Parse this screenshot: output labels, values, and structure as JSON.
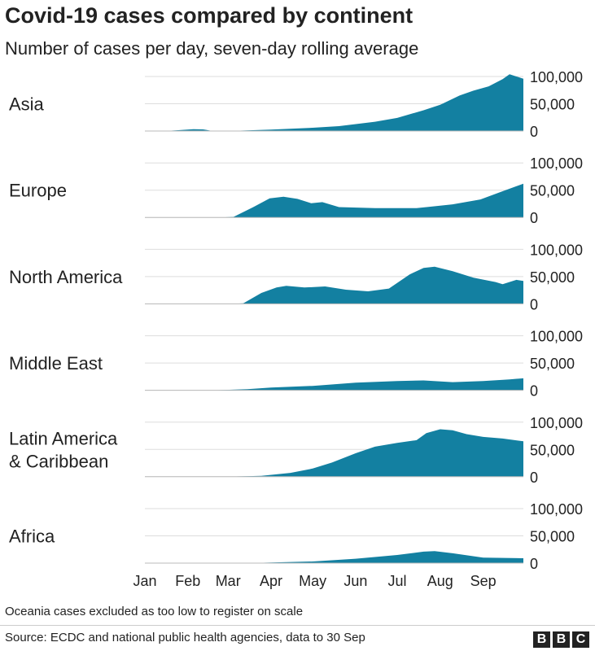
{
  "title": "Covid-19 cases compared by continent",
  "subtitle": "Number of cases per day, seven-day rolling average",
  "footnote": "Oceania cases excluded as too low to register on scale",
  "source": "Source: ECDC and national public health agencies, data to 30 Sep",
  "logo_letters": [
    "B",
    "B",
    "C"
  ],
  "colors": {
    "area": "#1380A1",
    "grid": "#dddddd",
    "text": "#222222"
  },
  "chart_data": {
    "type": "area",
    "layout": "small-multiples",
    "x_ticks": [
      "Jan",
      "Feb",
      "Mar",
      "Apr",
      "May",
      "Jun",
      "Jul",
      "Aug",
      "Sep"
    ],
    "x_domain": [
      "2020-01-01",
      "2020-09-30"
    ],
    "y_ticks": [
      "100,000",
      "50,000",
      "0"
    ],
    "y_tick_values": [
      100000,
      50000,
      0
    ],
    "ylim": [
      0,
      100000
    ],
    "grid": true,
    "panels": [
      {
        "name": "Asia",
        "points": [
          [
            "2020-01-01",
            0
          ],
          [
            "2020-01-15",
            0
          ],
          [
            "2020-01-25",
            1500
          ],
          [
            "2020-02-05",
            3500
          ],
          [
            "2020-02-12",
            3000
          ],
          [
            "2020-02-18",
            500
          ],
          [
            "2020-03-01",
            0
          ],
          [
            "2020-04-01",
            2500
          ],
          [
            "2020-05-01",
            6000
          ],
          [
            "2020-05-20",
            9000
          ],
          [
            "2020-06-15",
            17000
          ],
          [
            "2020-07-01",
            24000
          ],
          [
            "2020-07-20",
            38000
          ],
          [
            "2020-08-01",
            48000
          ],
          [
            "2020-08-15",
            65000
          ],
          [
            "2020-08-25",
            74000
          ],
          [
            "2020-09-05",
            82000
          ],
          [
            "2020-09-15",
            95000
          ],
          [
            "2020-09-20",
            104000
          ],
          [
            "2020-09-25",
            100000
          ],
          [
            "2020-09-30",
            96000
          ]
        ]
      },
      {
        "name": "Europe",
        "points": [
          [
            "2020-01-01",
            0
          ],
          [
            "2020-02-25",
            0
          ],
          [
            "2020-03-05",
            1000
          ],
          [
            "2020-03-20",
            20000
          ],
          [
            "2020-03-31",
            35000
          ],
          [
            "2020-04-10",
            38000
          ],
          [
            "2020-04-20",
            34000
          ],
          [
            "2020-04-30",
            26000
          ],
          [
            "2020-05-08",
            28000
          ],
          [
            "2020-05-20",
            19000
          ],
          [
            "2020-06-15",
            17000
          ],
          [
            "2020-07-15",
            17000
          ],
          [
            "2020-08-10",
            24000
          ],
          [
            "2020-08-30",
            33000
          ],
          [
            "2020-09-15",
            48000
          ],
          [
            "2020-09-30",
            62000
          ]
        ]
      },
      {
        "name": "North America",
        "points": [
          [
            "2020-01-01",
            0
          ],
          [
            "2020-03-05",
            0
          ],
          [
            "2020-03-12",
            1000
          ],
          [
            "2020-03-25",
            20000
          ],
          [
            "2020-04-05",
            30000
          ],
          [
            "2020-04-12",
            33000
          ],
          [
            "2020-04-25",
            30000
          ],
          [
            "2020-05-10",
            32000
          ],
          [
            "2020-05-25",
            26000
          ],
          [
            "2020-06-10",
            23000
          ],
          [
            "2020-06-25",
            28000
          ],
          [
            "2020-07-10",
            54000
          ],
          [
            "2020-07-20",
            66000
          ],
          [
            "2020-07-28",
            68000
          ],
          [
            "2020-08-10",
            60000
          ],
          [
            "2020-08-25",
            48000
          ],
          [
            "2020-09-10",
            40000
          ],
          [
            "2020-09-15",
            36000
          ],
          [
            "2020-09-25",
            44000
          ],
          [
            "2020-09-30",
            42000
          ]
        ]
      },
      {
        "name": "Middle East",
        "points": [
          [
            "2020-01-01",
            0
          ],
          [
            "2020-02-20",
            0
          ],
          [
            "2020-03-15",
            2000
          ],
          [
            "2020-04-01",
            5000
          ],
          [
            "2020-05-01",
            8000
          ],
          [
            "2020-06-01",
            14000
          ],
          [
            "2020-07-01",
            17000
          ],
          [
            "2020-07-20",
            18000
          ],
          [
            "2020-08-10",
            15000
          ],
          [
            "2020-09-01",
            17000
          ],
          [
            "2020-09-20",
            20000
          ],
          [
            "2020-09-30",
            22000
          ]
        ]
      },
      {
        "name": "Latin America & Caribbean",
        "points": [
          [
            "2020-01-01",
            0
          ],
          [
            "2020-03-01",
            0
          ],
          [
            "2020-03-25",
            1500
          ],
          [
            "2020-04-15",
            7000
          ],
          [
            "2020-05-01",
            15000
          ],
          [
            "2020-05-15",
            26000
          ],
          [
            "2020-06-01",
            43000
          ],
          [
            "2020-06-15",
            55000
          ],
          [
            "2020-07-01",
            62000
          ],
          [
            "2020-07-15",
            67000
          ],
          [
            "2020-07-22",
            80000
          ],
          [
            "2020-08-01",
            87000
          ],
          [
            "2020-08-10",
            85000
          ],
          [
            "2020-08-20",
            78000
          ],
          [
            "2020-09-01",
            73000
          ],
          [
            "2020-09-15",
            70000
          ],
          [
            "2020-09-30",
            65000
          ]
        ]
      },
      {
        "name": "Africa",
        "points": [
          [
            "2020-01-01",
            0
          ],
          [
            "2020-03-15",
            0
          ],
          [
            "2020-04-01",
            1000
          ],
          [
            "2020-05-01",
            3000
          ],
          [
            "2020-06-01",
            8000
          ],
          [
            "2020-07-01",
            15000
          ],
          [
            "2020-07-20",
            21000
          ],
          [
            "2020-07-28",
            22000
          ],
          [
            "2020-08-10",
            18000
          ],
          [
            "2020-09-01",
            10000
          ],
          [
            "2020-09-30",
            9000
          ]
        ]
      }
    ]
  }
}
